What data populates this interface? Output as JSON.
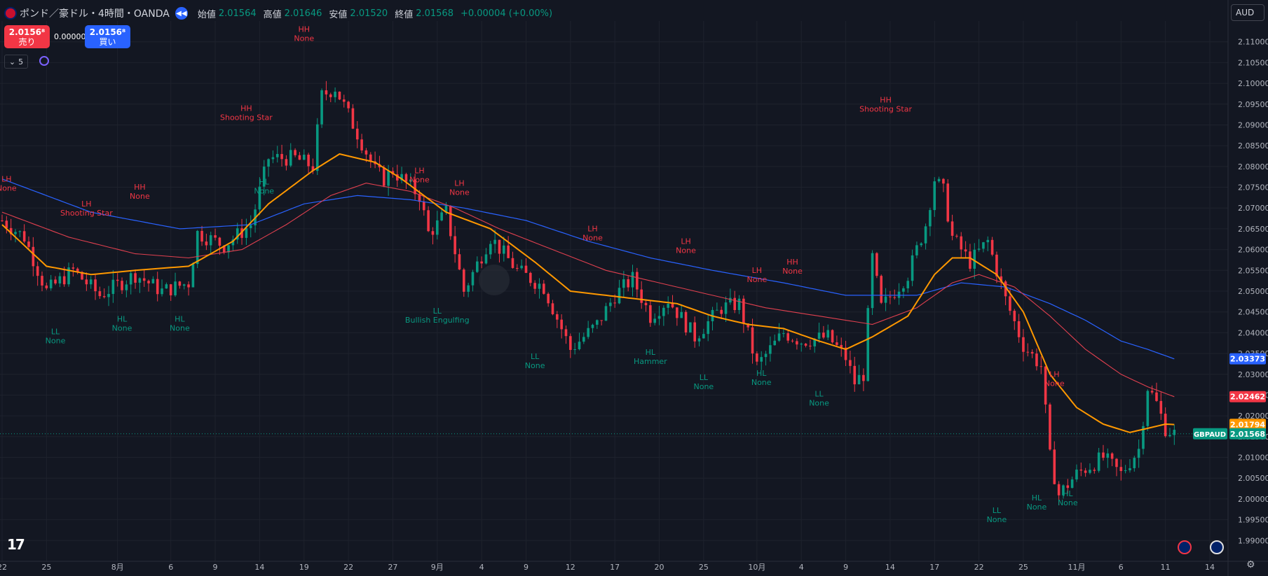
{
  "header": {
    "title": "ポンド／豪ドル・4時間・OANDA",
    "open_label": "始値",
    "open": "2.01564",
    "high_label": "高値",
    "high": "2.01646",
    "low_label": "安値",
    "low": "2.01520",
    "close_label": "終値",
    "close": "2.01568",
    "change": "+0.00004 (+0.00%)"
  },
  "trade": {
    "sell_price": "2.0156⁸",
    "sell_label": "売り",
    "spread": "0.00000",
    "buy_price": "2.0156⁸",
    "buy_label": "買い"
  },
  "indicator_count": "5",
  "currency": "AUD",
  "colors": {
    "background": "#131722",
    "up": "#089981",
    "down": "#f23645",
    "ma_fast": "#ff9800",
    "ma_mid": "#e0404f",
    "ma_slow": "#2962ff",
    "label_high": "#f23645",
    "label_low": "#089981"
  },
  "chart_data": {
    "type": "candlestick",
    "symbol": "GBPAUD",
    "ylim": [
      1.985,
      2.115
    ],
    "y_ticks": [
      "2.11000",
      "2.10500",
      "2.10000",
      "2.09500",
      "2.09000",
      "2.08500",
      "2.08000",
      "2.07500",
      "2.07000",
      "2.06500",
      "2.06000",
      "2.05500",
      "2.05000",
      "2.04500",
      "2.04000",
      "2.03500",
      "2.03000",
      "2.02500",
      "2.02000",
      "2.01500",
      "2.01000",
      "2.00500",
      "2.00000",
      "1.99500",
      "1.99000"
    ],
    "x_ticks": [
      "22",
      "25",
      "8月",
      "6",
      "9",
      "14",
      "19",
      "22",
      "27",
      "9月",
      "4",
      "9",
      "12",
      "17",
      "20",
      "25",
      "10月",
      "4",
      "9",
      "14",
      "17",
      "22",
      "25",
      "11月",
      "6",
      "11",
      "14"
    ],
    "x_tick_index": [
      0,
      10,
      26,
      38,
      48,
      58,
      68,
      78,
      88,
      98,
      108,
      118,
      128,
      138,
      148,
      158,
      170,
      180,
      190,
      200,
      210,
      220,
      230,
      242,
      252,
      262,
      272
    ],
    "price_path": [
      [
        0,
        2.067
      ],
      [
        5,
        2.063
      ],
      [
        10,
        2.05
      ],
      [
        16,
        2.055
      ],
      [
        22,
        2.049
      ],
      [
        30,
        2.054
      ],
      [
        36,
        2.05
      ],
      [
        42,
        2.052
      ],
      [
        44,
        2.064
      ],
      [
        50,
        2.061
      ],
      [
        56,
        2.066
      ],
      [
        60,
        2.082
      ],
      [
        66,
        2.082
      ],
      [
        70,
        2.08
      ],
      [
        72,
        2.097
      ],
      [
        75,
        2.099
      ],
      [
        80,
        2.088
      ],
      [
        84,
        2.079
      ],
      [
        86,
        2.077
      ],
      [
        88,
        2.079
      ],
      [
        94,
        2.073
      ],
      [
        96,
        2.064
      ],
      [
        98,
        2.066
      ],
      [
        100,
        2.069
      ],
      [
        104,
        2.05
      ],
      [
        110,
        2.063
      ],
      [
        116,
        2.055
      ],
      [
        122,
        2.051
      ],
      [
        128,
        2.036
      ],
      [
        134,
        2.042
      ],
      [
        138,
        2.049
      ],
      [
        142,
        2.053
      ],
      [
        146,
        2.044
      ],
      [
        150,
        2.048
      ],
      [
        156,
        2.039
      ],
      [
        162,
        2.046
      ],
      [
        166,
        2.047
      ],
      [
        170,
        2.032
      ],
      [
        176,
        2.04
      ],
      [
        180,
        2.038
      ],
      [
        186,
        2.039
      ],
      [
        190,
        2.034
      ],
      [
        192,
        2.028
      ],
      [
        194,
        2.03
      ],
      [
        196,
        2.058
      ],
      [
        198,
        2.046
      ],
      [
        204,
        2.054
      ],
      [
        208,
        2.066
      ],
      [
        210,
        2.077
      ],
      [
        212,
        2.074
      ],
      [
        214,
        2.063
      ],
      [
        218,
        2.057
      ],
      [
        222,
        2.062
      ],
      [
        226,
        2.048
      ],
      [
        230,
        2.037
      ],
      [
        234,
        2.032
      ],
      [
        236,
        2.01
      ],
      [
        238,
        2.001
      ],
      [
        242,
        2.006
      ],
      [
        248,
        2.01
      ],
      [
        252,
        2.006
      ],
      [
        256,
        2.012
      ],
      [
        258,
        2.027
      ],
      [
        260,
        2.023
      ],
      [
        262,
        2.017
      ],
      [
        264,
        2.0157
      ]
    ],
    "ma_fast": [
      [
        0,
        2.066
      ],
      [
        10,
        2.056
      ],
      [
        20,
        2.054
      ],
      [
        30,
        2.055
      ],
      [
        42,
        2.056
      ],
      [
        52,
        2.062
      ],
      [
        60,
        2.071
      ],
      [
        70,
        2.079
      ],
      [
        76,
        2.083
      ],
      [
        84,
        2.081
      ],
      [
        90,
        2.077
      ],
      [
        100,
        2.069
      ],
      [
        110,
        2.065
      ],
      [
        120,
        2.057
      ],
      [
        128,
        2.05
      ],
      [
        136,
        2.049
      ],
      [
        144,
        2.048
      ],
      [
        152,
        2.047
      ],
      [
        160,
        2.044
      ],
      [
        168,
        2.042
      ],
      [
        176,
        2.041
      ],
      [
        184,
        2.038
      ],
      [
        190,
        2.036
      ],
      [
        196,
        2.039
      ],
      [
        204,
        2.044
      ],
      [
        210,
        2.054
      ],
      [
        214,
        2.058
      ],
      [
        218,
        2.058
      ],
      [
        224,
        2.054
      ],
      [
        230,
        2.045
      ],
      [
        236,
        2.03
      ],
      [
        242,
        2.022
      ],
      [
        248,
        2.018
      ],
      [
        254,
        2.016
      ],
      [
        258,
        2.017
      ],
      [
        262,
        2.018
      ],
      [
        264,
        2.0179
      ]
    ],
    "ma_mid": [
      [
        0,
        2.069
      ],
      [
        15,
        2.063
      ],
      [
        30,
        2.059
      ],
      [
        42,
        2.058
      ],
      [
        54,
        2.06
      ],
      [
        64,
        2.066
      ],
      [
        74,
        2.073
      ],
      [
        82,
        2.076
      ],
      [
        92,
        2.074
      ],
      [
        102,
        2.07
      ],
      [
        112,
        2.065
      ],
      [
        124,
        2.06
      ],
      [
        136,
        2.055
      ],
      [
        148,
        2.052
      ],
      [
        160,
        2.049
      ],
      [
        172,
        2.046
      ],
      [
        184,
        2.044
      ],
      [
        196,
        2.042
      ],
      [
        206,
        2.046
      ],
      [
        214,
        2.052
      ],
      [
        220,
        2.054
      ],
      [
        228,
        2.051
      ],
      [
        236,
        2.044
      ],
      [
        244,
        2.036
      ],
      [
        252,
        2.03
      ],
      [
        258,
        2.027
      ],
      [
        264,
        2.0246
      ]
    ],
    "ma_slow": [
      [
        0,
        2.077
      ],
      [
        20,
        2.069
      ],
      [
        40,
        2.065
      ],
      [
        56,
        2.066
      ],
      [
        68,
        2.071
      ],
      [
        80,
        2.073
      ],
      [
        92,
        2.072
      ],
      [
        104,
        2.07
      ],
      [
        118,
        2.067
      ],
      [
        132,
        2.062
      ],
      [
        146,
        2.058
      ],
      [
        160,
        2.055
      ],
      [
        176,
        2.052
      ],
      [
        190,
        2.049
      ],
      [
        206,
        2.049
      ],
      [
        216,
        2.052
      ],
      [
        226,
        2.051
      ],
      [
        236,
        2.047
      ],
      [
        244,
        2.043
      ],
      [
        252,
        2.038
      ],
      [
        258,
        2.036
      ],
      [
        264,
        2.0337
      ]
    ],
    "price_labels": [
      {
        "text": "2.03373",
        "y": 2.03373,
        "color": "#2962ff"
      },
      {
        "text": "2.02462",
        "y": 2.02462,
        "color": "#f23645"
      },
      {
        "text": "2.01794",
        "y": 2.01794,
        "color": "#ff9800"
      },
      {
        "text": "2.01568",
        "y": 2.01568,
        "color": "#089981"
      }
    ],
    "symbol_tag": "GBPAUD",
    "pivots": [
      {
        "i": 1,
        "y": 2.072,
        "kind": "high",
        "l1": "LH",
        "l2": "None"
      },
      {
        "i": 19,
        "y": 2.066,
        "kind": "high",
        "l1": "LH",
        "l2": "Shooting Star"
      },
      {
        "i": 31,
        "y": 2.07,
        "kind": "high",
        "l1": "HH",
        "l2": "None"
      },
      {
        "i": 55,
        "y": 2.089,
        "kind": "high",
        "l1": "HH",
        "l2": "Shooting Star"
      },
      {
        "i": 68,
        "y": 2.108,
        "kind": "high",
        "l1": "HH",
        "l2": "None"
      },
      {
        "i": 59,
        "y": 2.078,
        "kind": "low",
        "l1": "HL",
        "l2": "None"
      },
      {
        "i": 12,
        "y": 2.042,
        "kind": "low",
        "l1": "LL",
        "l2": "None"
      },
      {
        "i": 27,
        "y": 2.045,
        "kind": "low",
        "l1": "HL",
        "l2": "None"
      },
      {
        "i": 40,
        "y": 2.045,
        "kind": "low",
        "l1": "HL",
        "l2": "None"
      },
      {
        "i": 94,
        "y": 2.074,
        "kind": "high",
        "l1": "LH",
        "l2": "None"
      },
      {
        "i": 103,
        "y": 2.071,
        "kind": "high",
        "l1": "LH",
        "l2": "None"
      },
      {
        "i": 98,
        "y": 2.047,
        "kind": "low",
        "l1": "LL",
        "l2": "Bullish Engulfing"
      },
      {
        "i": 120,
        "y": 2.036,
        "kind": "low",
        "l1": "LL",
        "l2": "None"
      },
      {
        "i": 133,
        "y": 2.06,
        "kind": "high",
        "l1": "LH",
        "l2": "None"
      },
      {
        "i": 146,
        "y": 2.037,
        "kind": "low",
        "l1": "HL",
        "l2": "Hammer"
      },
      {
        "i": 154,
        "y": 2.057,
        "kind": "high",
        "l1": "LH",
        "l2": "None"
      },
      {
        "i": 158,
        "y": 2.031,
        "kind": "low",
        "l1": "LL",
        "l2": "None"
      },
      {
        "i": 170,
        "y": 2.05,
        "kind": "high",
        "l1": "LH",
        "l2": "None"
      },
      {
        "i": 171,
        "y": 2.032,
        "kind": "low",
        "l1": "HL",
        "l2": "None"
      },
      {
        "i": 178,
        "y": 2.052,
        "kind": "high",
        "l1": "HH",
        "l2": "None"
      },
      {
        "i": 184,
        "y": 2.027,
        "kind": "low",
        "l1": "LL",
        "l2": "None"
      },
      {
        "i": 199,
        "y": 2.091,
        "kind": "high",
        "l1": "HH",
        "l2": "Shooting Star"
      },
      {
        "i": 224,
        "y": 1.999,
        "kind": "low",
        "l1": "LL",
        "l2": "None"
      },
      {
        "i": 233,
        "y": 2.002,
        "kind": "low",
        "l1": "HL",
        "l2": "None"
      },
      {
        "i": 240,
        "y": 2.003,
        "kind": "low",
        "l1": "HL",
        "l2": "None"
      },
      {
        "i": 237,
        "y": 2.025,
        "kind": "high",
        "l1": "LH",
        "l2": "None"
      }
    ]
  }
}
